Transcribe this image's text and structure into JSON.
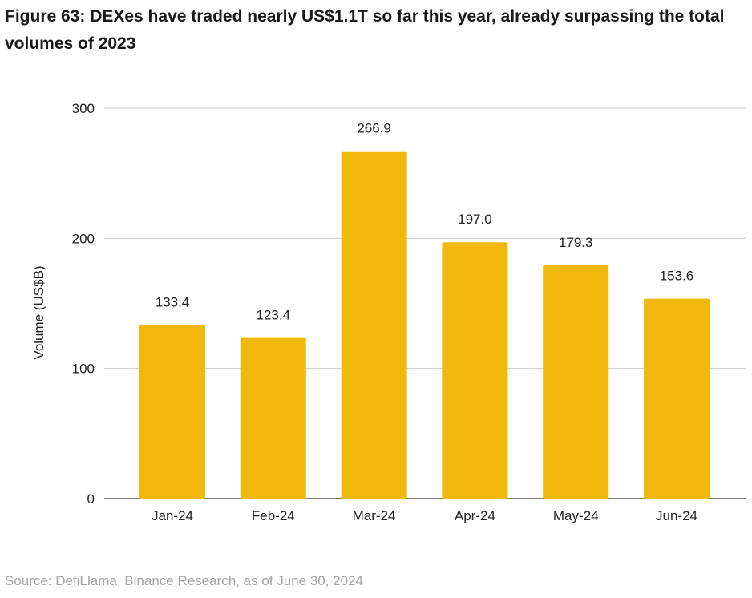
{
  "colors": {
    "bar": "#F0B90B",
    "grid": "#cccccc",
    "text": "#222222",
    "source": "#a3a3a3"
  },
  "chart_data": {
    "type": "bar",
    "title": "Figure 63: DEXes have traded nearly US$1.1T so far this year, already surpassing the total volumes of 2023",
    "categories": [
      "Jan-24",
      "Feb-24",
      "Mar-24",
      "Apr-24",
      "May-24",
      "Jun-24"
    ],
    "values": [
      133.4,
      123.4,
      266.9,
      197.0,
      179.3,
      153.6
    ],
    "data_labels": [
      "133.4",
      "123.4",
      "266.9",
      "197.0",
      "179.3",
      "153.6"
    ],
    "xlabel": "",
    "ylabel": "Volume (US$B)",
    "ylim": [
      0,
      300
    ],
    "yticks": [
      0,
      100,
      200,
      300
    ],
    "grid": true,
    "legend": "none"
  },
  "source": "Source: DefiLlama, Binance Research, as of June 30, 2024"
}
